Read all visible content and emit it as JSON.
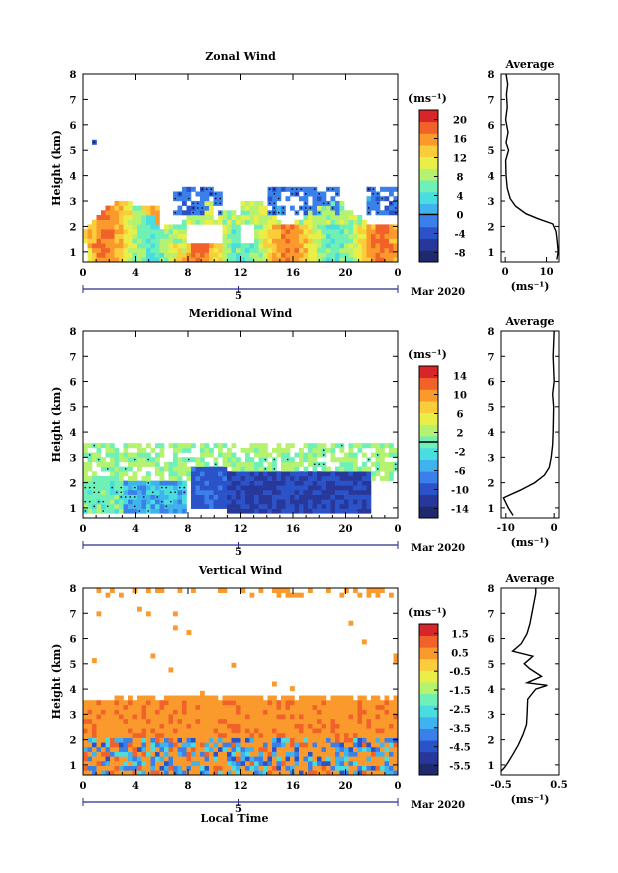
{
  "chart_data": [
    {
      "type": "heatmap",
      "title": "Zonal Wind",
      "ylabel": "Height (km)",
      "unit_label": "(ms⁻¹)",
      "xticks": [
        "0",
        "4",
        "8",
        "12",
        "16",
        "20",
        "0"
      ],
      "yticks": [
        "1",
        "2",
        "3",
        "4",
        "5",
        "6",
        "7",
        "8"
      ],
      "xlim": [
        0,
        24
      ],
      "ylim": [
        0.6,
        8
      ],
      "date_tick": "5",
      "date_label": "Mar 2020",
      "colorbar": {
        "ticks": [
          "20",
          "16",
          "12",
          "8",
          "4",
          "0",
          "-4",
          "-8"
        ],
        "range": [
          -10,
          22
        ],
        "marked_line": 0
      },
      "profile": {
        "title": "Average",
        "xlabel": "(ms⁻¹)",
        "xticks": [
          "0",
          "10"
        ],
        "xlim": [
          -1,
          13
        ],
        "yticks": [
          "1",
          "2",
          "3",
          "4",
          "5",
          "6",
          "7",
          "8"
        ],
        "points": [
          [
            12.5,
            0.7
          ],
          [
            12.8,
            1.0
          ],
          [
            12.6,
            1.4
          ],
          [
            12.3,
            1.8
          ],
          [
            11.5,
            2.1
          ],
          [
            8,
            2.3
          ],
          [
            5,
            2.5
          ],
          [
            2.5,
            2.8
          ],
          [
            1.2,
            3.1
          ],
          [
            0.5,
            3.5
          ],
          [
            0.2,
            4.0
          ],
          [
            0.1,
            4.6
          ],
          [
            0.8,
            5.0
          ],
          [
            0.2,
            5.3
          ],
          [
            0.7,
            5.7
          ],
          [
            0.1,
            6.2
          ],
          [
            0.5,
            6.7
          ],
          [
            0.3,
            7.2
          ],
          [
            0.6,
            7.6
          ],
          [
            0.2,
            8.0
          ]
        ]
      }
    },
    {
      "type": "heatmap",
      "title": "Meridional Wind",
      "ylabel": "Height (km)",
      "unit_label": "(ms⁻¹)",
      "xticks": [
        "0",
        "4",
        "8",
        "12",
        "16",
        "20",
        "0"
      ],
      "yticks": [
        "1",
        "2",
        "3",
        "4",
        "5",
        "6",
        "7",
        "8"
      ],
      "xlim": [
        0,
        24
      ],
      "ylim": [
        0.6,
        8
      ],
      "date_tick": "5",
      "date_label": "Mar 2020",
      "colorbar": {
        "ticks": [
          "14",
          "10",
          "6",
          "2",
          "-2",
          "-6",
          "-10",
          "-14"
        ],
        "range": [
          -16,
          16
        ],
        "marked_line": 0
      },
      "profile": {
        "title": "Average",
        "xlabel": "(ms⁻¹)",
        "xticks": [
          "-10",
          "0"
        ],
        "xlim": [
          -11,
          1
        ],
        "yticks": [
          "1",
          "2",
          "3",
          "4",
          "5",
          "6",
          "7",
          "8"
        ],
        "points": [
          [
            -8.5,
            0.7
          ],
          [
            -9.5,
            1.0
          ],
          [
            -10.5,
            1.4
          ],
          [
            -7,
            1.7
          ],
          [
            -4,
            2.0
          ],
          [
            -2,
            2.3
          ],
          [
            -1,
            2.6
          ],
          [
            -0.6,
            3.0
          ],
          [
            -0.3,
            3.5
          ],
          [
            -0.2,
            4.0
          ],
          [
            -0.1,
            5.0
          ],
          [
            -0.3,
            5.5
          ],
          [
            0,
            6.0
          ],
          [
            -0.2,
            7.0
          ],
          [
            0,
            8.0
          ]
        ]
      }
    },
    {
      "type": "heatmap",
      "title": "Vertical Wind",
      "ylabel": "Height (km)",
      "xlabel": "Local Time",
      "unit_label": "(ms⁻¹)",
      "xticks": [
        "0",
        "4",
        "8",
        "12",
        "16",
        "20",
        "0"
      ],
      "yticks": [
        "1",
        "2",
        "3",
        "4",
        "5",
        "6",
        "7",
        "8"
      ],
      "xlim": [
        0,
        24
      ],
      "ylim": [
        0.6,
        8
      ],
      "date_tick": "5",
      "date_label": "Mar 2020",
      "colorbar": {
        "ticks": [
          "1.5",
          "0.5",
          "-0.5",
          "-1.5",
          "-2.5",
          "-3.5",
          "-4.5",
          "-5.5"
        ],
        "range": [
          -6,
          2
        ]
      },
      "profile": {
        "title": "Average",
        "xlabel": "(ms⁻¹)",
        "xticks": [
          "-0.5",
          "0.5"
        ],
        "xlim": [
          -0.5,
          0.5
        ],
        "yticks": [
          "1",
          "2",
          "3",
          "4",
          "5",
          "6",
          "7",
          "8"
        ],
        "points": [
          [
            -0.5,
            0.75
          ],
          [
            -0.44,
            0.9
          ],
          [
            -0.38,
            1.1
          ],
          [
            -0.3,
            1.4
          ],
          [
            -0.2,
            1.8
          ],
          [
            -0.12,
            2.2
          ],
          [
            -0.06,
            2.6
          ],
          [
            -0.05,
            3.0
          ],
          [
            -0.04,
            3.6
          ],
          [
            0.1,
            4.0
          ],
          [
            0.3,
            4.15
          ],
          [
            -0.05,
            4.25
          ],
          [
            0.2,
            4.5
          ],
          [
            0.0,
            4.8
          ],
          [
            -0.1,
            5.0
          ],
          [
            0.05,
            5.3
          ],
          [
            -0.3,
            5.5
          ],
          [
            -0.15,
            5.8
          ],
          [
            -0.05,
            6.2
          ],
          [
            0.0,
            6.6
          ],
          [
            0.05,
            7.2
          ],
          [
            0.1,
            7.8
          ],
          [
            0.1,
            8.0
          ]
        ]
      }
    }
  ]
}
